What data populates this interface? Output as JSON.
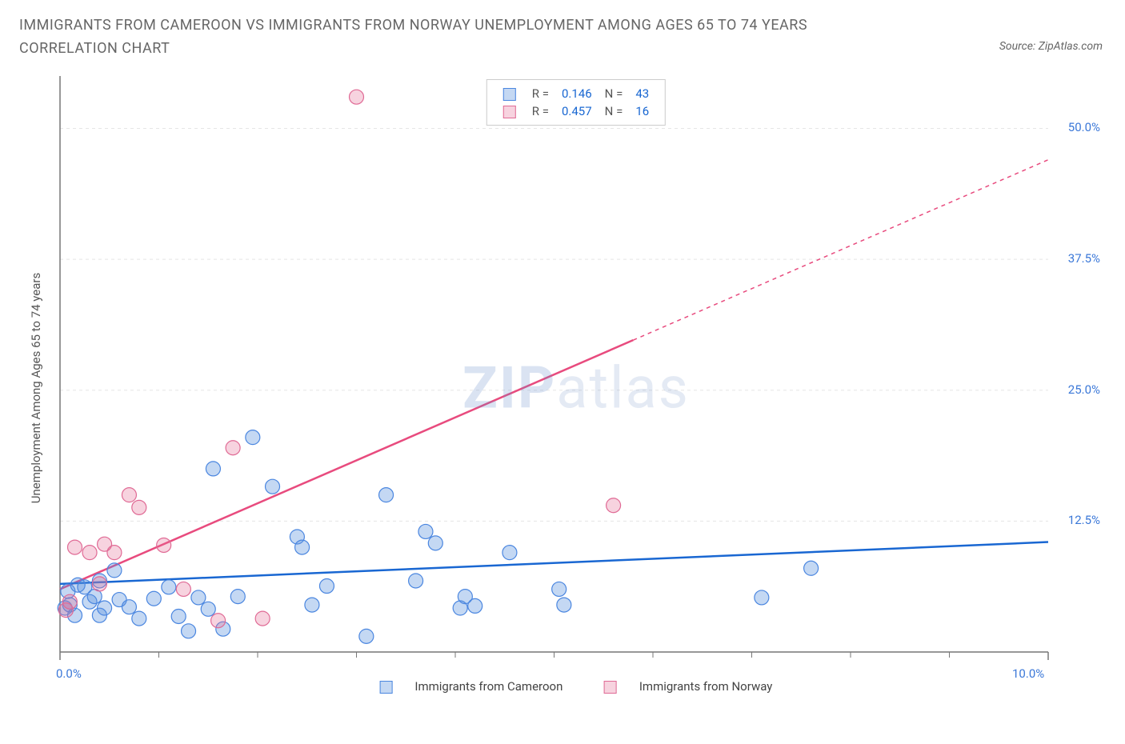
{
  "title": "IMMIGRANTS FROM CAMEROON VS IMMIGRANTS FROM NORWAY UNEMPLOYMENT AMONG AGES 65 TO 74 YEARS CORRELATION CHART",
  "source": "Source: ZipAtlas.com",
  "y_axis_label": "Unemployment Among Ages 65 to 74 years",
  "watermark_bold": "ZIP",
  "watermark_light": "atlas",
  "chart": {
    "type": "scatter-with-regression",
    "xlim": [
      0,
      10
    ],
    "ylim": [
      0,
      55
    ],
    "x_ticks_major": [
      0,
      10
    ],
    "x_ticks_major_labels": [
      "0.0%",
      "10.0%"
    ],
    "x_ticks_minor": [
      1,
      2,
      3,
      4,
      5,
      6,
      7,
      8,
      9
    ],
    "y_ticks": [
      12.5,
      25.0,
      37.5,
      50.0
    ],
    "y_tick_labels": [
      "12.5%",
      "25.0%",
      "37.5%",
      "50.0%"
    ],
    "grid_color": "#e5e5e5",
    "axis_color": "#777777",
    "background_color": "#ffffff",
    "marker_radius": 9,
    "marker_stroke_width": 1.2,
    "line_width": 2.5,
    "series": [
      {
        "name": "Immigrants from Cameroon",
        "fill": "rgba(86, 142, 222, 0.35)",
        "stroke": "#4a86e0",
        "line_color": "#1967d2",
        "R": "0.146",
        "N": "43",
        "regression": {
          "x1": 0,
          "y1": 6.5,
          "x2": 10,
          "y2": 10.5,
          "solid_to_x": 10
        },
        "points": [
          [
            0.05,
            4.2
          ],
          [
            0.08,
            5.8
          ],
          [
            0.1,
            4.5
          ],
          [
            0.15,
            3.5
          ],
          [
            0.18,
            6.4
          ],
          [
            0.25,
            6.2
          ],
          [
            0.3,
            4.8
          ],
          [
            0.35,
            5.3
          ],
          [
            0.4,
            3.5
          ],
          [
            0.45,
            4.2
          ],
          [
            0.55,
            7.8
          ],
          [
            0.6,
            5.0
          ],
          [
            0.7,
            4.3
          ],
          [
            0.8,
            3.2
          ],
          [
            0.95,
            5.1
          ],
          [
            1.1,
            6.2
          ],
          [
            1.2,
            3.4
          ],
          [
            1.3,
            2.0
          ],
          [
            1.4,
            5.2
          ],
          [
            1.5,
            4.1
          ],
          [
            1.55,
            17.5
          ],
          [
            1.65,
            2.2
          ],
          [
            1.8,
            5.3
          ],
          [
            1.95,
            20.5
          ],
          [
            2.15,
            15.8
          ],
          [
            2.4,
            11.0
          ],
          [
            2.45,
            10.0
          ],
          [
            2.55,
            4.5
          ],
          [
            2.7,
            6.3
          ],
          [
            3.1,
            1.5
          ],
          [
            3.3,
            15.0
          ],
          [
            3.6,
            6.8
          ],
          [
            3.7,
            11.5
          ],
          [
            3.8,
            10.4
          ],
          [
            4.05,
            4.2
          ],
          [
            4.1,
            5.3
          ],
          [
            4.2,
            4.4
          ],
          [
            4.55,
            9.5
          ],
          [
            5.05,
            6.0
          ],
          [
            7.1,
            5.2
          ],
          [
            7.6,
            8.0
          ],
          [
            5.1,
            4.5
          ],
          [
            0.4,
            6.8
          ]
        ]
      },
      {
        "name": "Immigrants from Norway",
        "fill": "rgba(230, 110, 150, 0.30)",
        "stroke": "#e06a95",
        "line_color": "#e84b7e",
        "R": "0.457",
        "N": "16",
        "regression": {
          "x1": 0,
          "y1": 6.0,
          "x2": 10,
          "y2": 47.0,
          "solid_to_x": 5.8
        },
        "points": [
          [
            0.06,
            4.0
          ],
          [
            0.1,
            4.8
          ],
          [
            0.15,
            10.0
          ],
          [
            0.3,
            9.5
          ],
          [
            0.4,
            6.5
          ],
          [
            0.45,
            10.3
          ],
          [
            0.55,
            9.5
          ],
          [
            0.7,
            15.0
          ],
          [
            0.8,
            13.8
          ],
          [
            1.05,
            10.2
          ],
          [
            1.25,
            6.0
          ],
          [
            1.6,
            3.0
          ],
          [
            1.75,
            19.5
          ],
          [
            2.05,
            3.2
          ],
          [
            3.0,
            53.0
          ],
          [
            5.6,
            14.0
          ]
        ]
      }
    ]
  },
  "legend_top": {
    "r_label": "R =",
    "n_label": "N ="
  },
  "legend_bottom": {
    "series1": "Immigrants from Cameroon",
    "series2": "Immigrants from Norway"
  }
}
